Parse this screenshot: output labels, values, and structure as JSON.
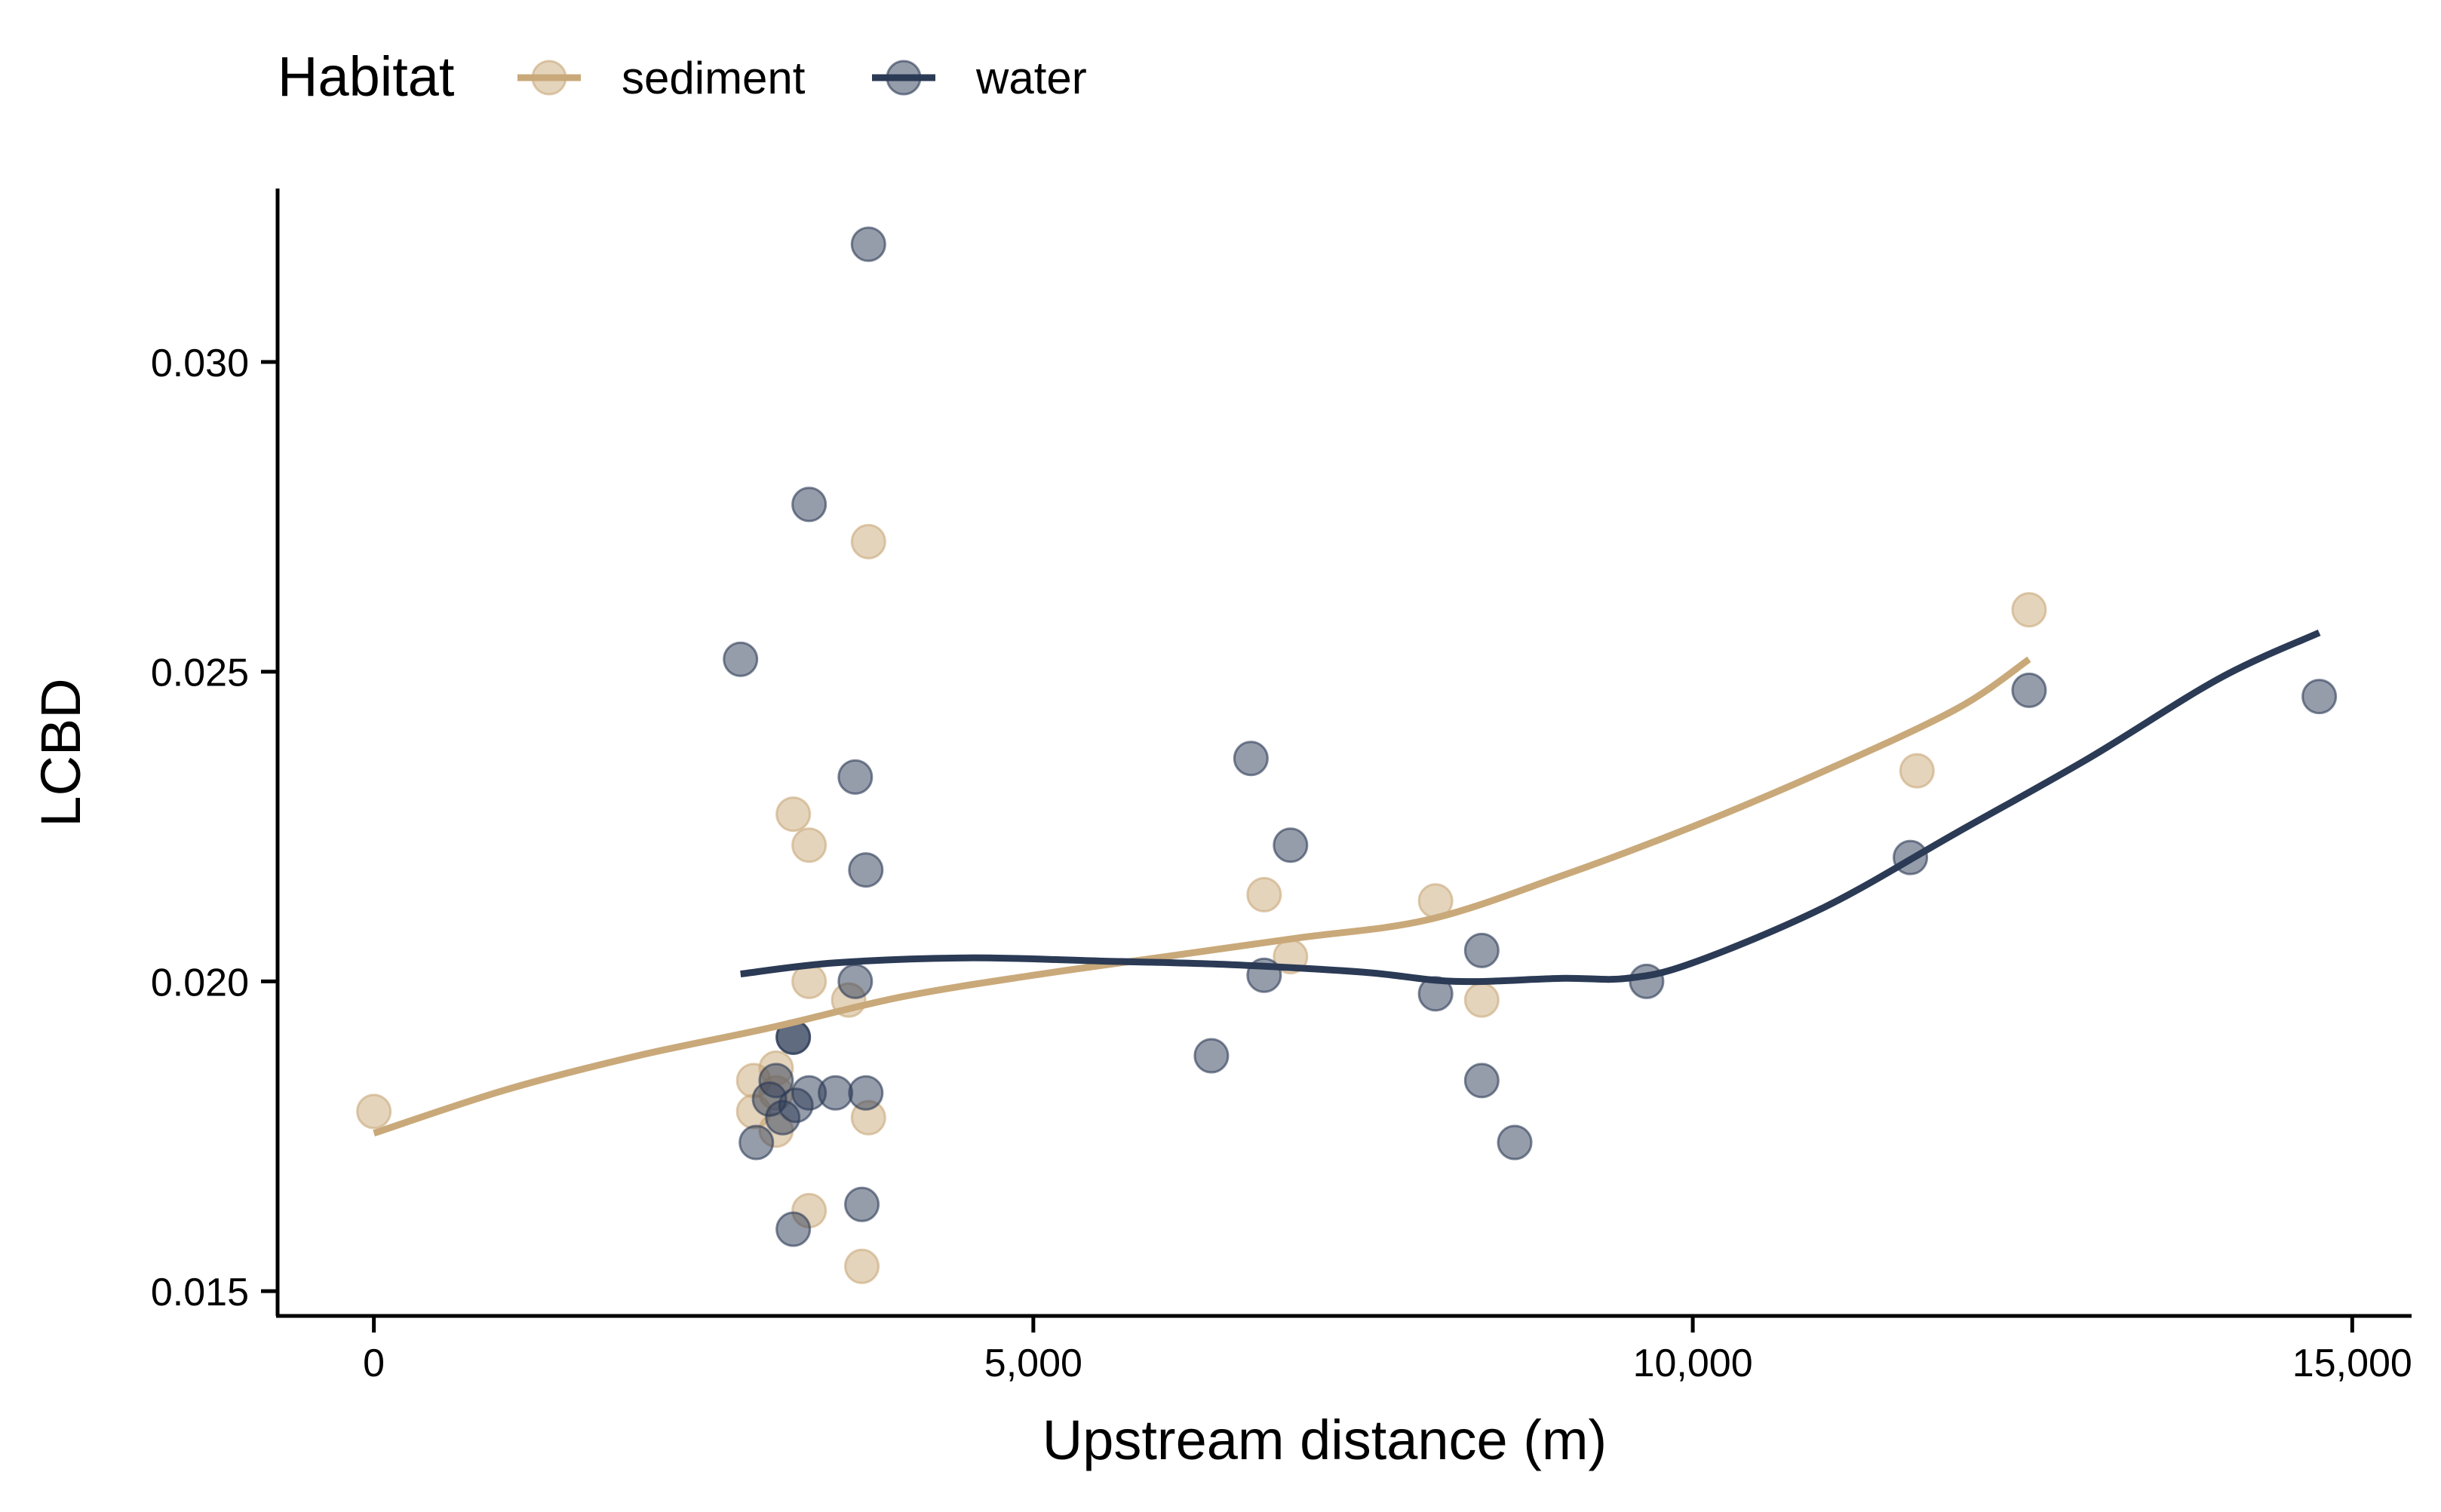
{
  "chart_data": {
    "type": "scatter",
    "xlabel": "Upstream distance (m)",
    "ylabel": "LCBD",
    "xlim": [
      -730,
      15450
    ],
    "ylim": [
      0.0146,
      0.0328
    ],
    "x_ticks": [
      0,
      5000,
      10000,
      15000
    ],
    "x_tick_labels": [
      "0",
      "5,000",
      "10,000",
      "15,000"
    ],
    "y_ticks": [
      0.015,
      0.02,
      0.025,
      0.03
    ],
    "y_tick_labels": [
      "0.015",
      "0.020",
      "0.025",
      "0.030"
    ],
    "grid": false,
    "legend": {
      "title": "Habitat",
      "position": "top-left"
    },
    "series": [
      {
        "name": "sediment",
        "color": "#c9a97a",
        "points": [
          [
            0,
            0.0179
          ],
          [
            2880,
            0.0184
          ],
          [
            2880,
            0.0179
          ],
          [
            3050,
            0.0186
          ],
          [
            3050,
            0.0182
          ],
          [
            3050,
            0.0176
          ],
          [
            3180,
            0.0227
          ],
          [
            3300,
            0.0222
          ],
          [
            3300,
            0.02
          ],
          [
            3300,
            0.0163
          ],
          [
            3600,
            0.0197
          ],
          [
            3750,
            0.0271
          ],
          [
            3750,
            0.0178
          ],
          [
            3700,
            0.0154
          ],
          [
            6750,
            0.0214
          ],
          [
            6950,
            0.0204
          ],
          [
            8050,
            0.0213
          ],
          [
            8400,
            0.0197
          ],
          [
            11700,
            0.0234
          ],
          [
            12550,
            0.026
          ]
        ],
        "smooth": [
          [
            0,
            0.01755
          ],
          [
            1000,
            0.01825
          ],
          [
            2000,
            0.0188
          ],
          [
            3000,
            0.01925
          ],
          [
            4000,
            0.01975
          ],
          [
            5000,
            0.0201
          ],
          [
            6000,
            0.0204
          ],
          [
            7000,
            0.0207
          ],
          [
            8000,
            0.021
          ],
          [
            9000,
            0.0217
          ],
          [
            10000,
            0.0225
          ],
          [
            11000,
            0.0234
          ],
          [
            12000,
            0.0244
          ],
          [
            12550,
            0.0252
          ]
        ]
      },
      {
        "name": "water",
        "color": "#2b3a55",
        "points": [
          [
            2780,
            0.0252
          ],
          [
            3300,
            0.0277
          ],
          [
            3750,
            0.0319
          ],
          [
            3650,
            0.0233
          ],
          [
            3730,
            0.0218
          ],
          [
            3650,
            0.02
          ],
          [
            3180,
            0.0191
          ],
          [
            3180,
            0.0191
          ],
          [
            3000,
            0.0181
          ],
          [
            3050,
            0.0184
          ],
          [
            3100,
            0.0178
          ],
          [
            3200,
            0.018
          ],
          [
            3300,
            0.0182
          ],
          [
            3500,
            0.0182
          ],
          [
            3730,
            0.0182
          ],
          [
            2900,
            0.0174
          ],
          [
            3700,
            0.0164
          ],
          [
            3180,
            0.016
          ],
          [
            6350,
            0.0188
          ],
          [
            6650,
            0.0236
          ],
          [
            6750,
            0.0201
          ],
          [
            6950,
            0.0222
          ],
          [
            8050,
            0.0198
          ],
          [
            8400,
            0.0205
          ],
          [
            8400,
            0.0184
          ],
          [
            8650,
            0.0174
          ],
          [
            9650,
            0.02
          ],
          [
            11650,
            0.022
          ],
          [
            12550,
            0.0247
          ],
          [
            14750,
            0.0246
          ]
        ],
        "smooth": [
          [
            2780,
            0.02012
          ],
          [
            3500,
            0.0203
          ],
          [
            4500,
            0.02038
          ],
          [
            5500,
            0.02033
          ],
          [
            6500,
            0.02027
          ],
          [
            7500,
            0.02015
          ],
          [
            8200,
            0.02
          ],
          [
            9000,
            0.02005
          ],
          [
            9500,
            0.02005
          ],
          [
            10000,
            0.0203
          ],
          [
            11000,
            0.0212
          ],
          [
            12000,
            0.0224
          ],
          [
            13000,
            0.0236
          ],
          [
            14000,
            0.0249
          ],
          [
            14750,
            0.02563
          ]
        ]
      }
    ]
  }
}
